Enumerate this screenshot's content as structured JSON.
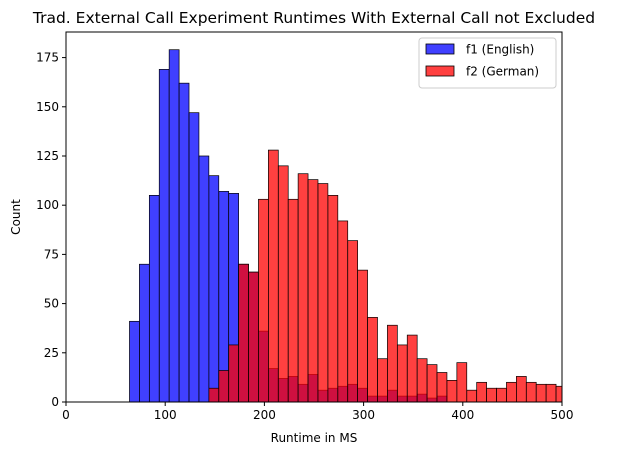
{
  "chart_data": {
    "type": "histogram",
    "title": "Trad. External Call Experiment Runtimes With External Call not Excluded",
    "xlabel": "Runtime in MS",
    "ylabel": "Count",
    "xlim": [
      0,
      500
    ],
    "ylim": [
      0,
      188
    ],
    "xticks": [
      0,
      100,
      200,
      300,
      400,
      500
    ],
    "yticks": [
      0,
      25,
      50,
      75,
      100,
      125,
      150,
      175
    ],
    "grid": false,
    "legend_position": "top-right",
    "overlap_color": "#cc0a3a",
    "series": [
      {
        "name": "f1 (English)",
        "color": "#0000ff",
        "bins": [
          {
            "x0": 64,
            "x1": 74,
            "count": 41
          },
          {
            "x0": 74,
            "x1": 84,
            "count": 70
          },
          {
            "x0": 84,
            "x1": 94,
            "count": 105
          },
          {
            "x0": 94,
            "x1": 104,
            "count": 169
          },
          {
            "x0": 104,
            "x1": 114,
            "count": 179
          },
          {
            "x0": 114,
            "x1": 124,
            "count": 162
          },
          {
            "x0": 124,
            "x1": 134,
            "count": 147
          },
          {
            "x0": 134,
            "x1": 144,
            "count": 125
          },
          {
            "x0": 144,
            "x1": 154,
            "count": 115
          },
          {
            "x0": 154,
            "x1": 164,
            "count": 107
          },
          {
            "x0": 164,
            "x1": 174,
            "count": 106
          },
          {
            "x0": 174,
            "x1": 184,
            "count": 70
          },
          {
            "x0": 184,
            "x1": 194,
            "count": 66
          },
          {
            "x0": 194,
            "x1": 204,
            "count": 36
          },
          {
            "x0": 204,
            "x1": 214,
            "count": 17
          },
          {
            "x0": 214,
            "x1": 224,
            "count": 12
          },
          {
            "x0": 224,
            "x1": 234,
            "count": 13
          },
          {
            "x0": 234,
            "x1": 244,
            "count": 9
          },
          {
            "x0": 244,
            "x1": 254,
            "count": 14
          },
          {
            "x0": 254,
            "x1": 264,
            "count": 6
          },
          {
            "x0": 264,
            "x1": 274,
            "count": 7
          },
          {
            "x0": 274,
            "x1": 284,
            "count": 8
          },
          {
            "x0": 284,
            "x1": 294,
            "count": 9
          },
          {
            "x0": 294,
            "x1": 304,
            "count": 7
          },
          {
            "x0": 304,
            "x1": 314,
            "count": 3
          },
          {
            "x0": 314,
            "x1": 324,
            "count": 3
          },
          {
            "x0": 324,
            "x1": 334,
            "count": 6
          },
          {
            "x0": 334,
            "x1": 344,
            "count": 3
          },
          {
            "x0": 344,
            "x1": 354,
            "count": 3
          },
          {
            "x0": 354,
            "x1": 364,
            "count": 4
          },
          {
            "x0": 364,
            "x1": 374,
            "count": 2
          },
          {
            "x0": 374,
            "x1": 384,
            "count": 3
          }
        ]
      },
      {
        "name": "f2 (German)",
        "color": "#ff0000",
        "bins": [
          {
            "x0": 144,
            "x1": 154,
            "count": 7
          },
          {
            "x0": 154,
            "x1": 164,
            "count": 16
          },
          {
            "x0": 164,
            "x1": 174,
            "count": 29
          },
          {
            "x0": 174,
            "x1": 184,
            "count": 70
          },
          {
            "x0": 184,
            "x1": 194,
            "count": 66
          },
          {
            "x0": 194,
            "x1": 204,
            "count": 103
          },
          {
            "x0": 204,
            "x1": 214,
            "count": 128
          },
          {
            "x0": 214,
            "x1": 224,
            "count": 120
          },
          {
            "x0": 224,
            "x1": 234,
            "count": 103
          },
          {
            "x0": 234,
            "x1": 244,
            "count": 116
          },
          {
            "x0": 244,
            "x1": 254,
            "count": 113
          },
          {
            "x0": 254,
            "x1": 264,
            "count": 111
          },
          {
            "x0": 264,
            "x1": 274,
            "count": 105
          },
          {
            "x0": 274,
            "x1": 284,
            "count": 92
          },
          {
            "x0": 284,
            "x1": 294,
            "count": 82
          },
          {
            "x0": 294,
            "x1": 304,
            "count": 67
          },
          {
            "x0": 304,
            "x1": 314,
            "count": 43
          },
          {
            "x0": 314,
            "x1": 324,
            "count": 22
          },
          {
            "x0": 324,
            "x1": 334,
            "count": 39
          },
          {
            "x0": 334,
            "x1": 344,
            "count": 29
          },
          {
            "x0": 344,
            "x1": 354,
            "count": 34
          },
          {
            "x0": 354,
            "x1": 364,
            "count": 22
          },
          {
            "x0": 364,
            "x1": 374,
            "count": 19
          },
          {
            "x0": 374,
            "x1": 384,
            "count": 15
          },
          {
            "x0": 384,
            "x1": 394,
            "count": 11
          },
          {
            "x0": 394,
            "x1": 404,
            "count": 20
          },
          {
            "x0": 404,
            "x1": 414,
            "count": 6
          },
          {
            "x0": 414,
            "x1": 424,
            "count": 10
          },
          {
            "x0": 424,
            "x1": 434,
            "count": 7
          },
          {
            "x0": 434,
            "x1": 444,
            "count": 7
          },
          {
            "x0": 444,
            "x1": 454,
            "count": 10
          },
          {
            "x0": 454,
            "x1": 464,
            "count": 13
          },
          {
            "x0": 464,
            "x1": 474,
            "count": 10
          },
          {
            "x0": 474,
            "x1": 484,
            "count": 9
          },
          {
            "x0": 484,
            "x1": 494,
            "count": 9
          },
          {
            "x0": 494,
            "x1": 504,
            "count": 8
          }
        ]
      }
    ]
  }
}
